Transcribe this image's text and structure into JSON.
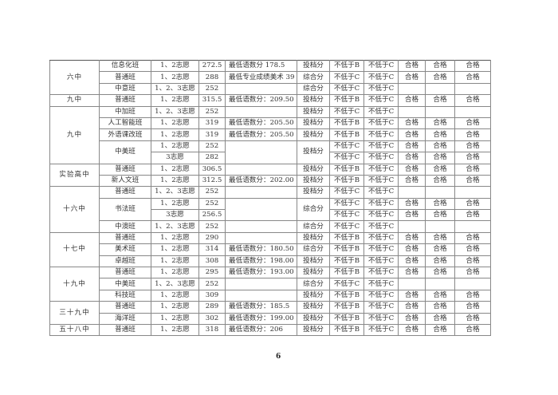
{
  "page_number": "6",
  "schools": [
    {
      "name": "六中",
      "classes": [
        {
          "name": "信息化班",
          "remark": "最低语数分 178.5",
          "type": "投档分",
          "options": [
            {
              "vol": "1、2志愿",
              "score": "272.5",
              "b": "不低于B",
              "c": "不低于C",
              "q": [
                "合格",
                "合格",
                "合格"
              ]
            }
          ]
        },
        {
          "name": "普通班",
          "remark": "最低专业成绩美术 39",
          "type": "综合分",
          "options": [
            {
              "vol": "1、2志愿",
              "score": "288",
              "b": "不低于C",
              "c": "不低于C",
              "q": [
                "合格",
                "合格",
                "合格"
              ]
            }
          ]
        },
        {
          "name": "中意班",
          "remark": "",
          "type": "综合分",
          "options": [
            {
              "vol": "1、2、3志愿",
              "score": "252",
              "b": "不低于C",
              "c": "不低于C",
              "q": [
                "",
                "",
                ""
              ]
            }
          ]
        }
      ]
    },
    {
      "name": "九中",
      "classes": [
        {
          "name": "普通班",
          "remark": "最低语数分：209.50",
          "type": "投档分",
          "options": [
            {
              "vol": "1、2志愿",
              "score": "315.5",
              "b": "不低于B",
              "c": "不低于C",
              "q": [
                "合格",
                "合格",
                "合格"
              ]
            }
          ]
        }
      ]
    },
    {
      "name": "九中",
      "classes": [
        {
          "name": "中加班",
          "remark": "",
          "type": "投档分",
          "options": [
            {
              "vol": "1、2、3志愿",
              "score": "252",
              "b": "不低于C",
              "c": "不低于C",
              "q": [
                "",
                "",
                ""
              ]
            }
          ]
        },
        {
          "name": "人工智能班",
          "remark": "最低语数分：205.50",
          "type": "投档分",
          "options": [
            {
              "vol": "1、2志愿",
              "score": "319",
              "b": "不低于B",
              "c": "不低于C",
              "q": [
                "合格",
                "合格",
                "合格"
              ]
            }
          ]
        },
        {
          "name": "外语课改班",
          "remark": "最低语数分：205.50",
          "type": "投档分",
          "options": [
            {
              "vol": "1、2志愿",
              "score": "319",
              "b": "不低于B",
              "c": "不低于C",
              "q": [
                "合格",
                "合格",
                "合格"
              ]
            }
          ]
        },
        {
          "name": "中美班",
          "remark": "",
          "type": "投档分",
          "options": [
            {
              "vol": "1、2志愿",
              "score": "252",
              "b": "不低于C",
              "c": "不低于C",
              "q": [
                "合格",
                "合格",
                "合格"
              ]
            },
            {
              "vol": "3志愿",
              "score": "282",
              "b": "不低于C",
              "c": "不低于C",
              "q": [
                "合格",
                "合格",
                "合格"
              ]
            }
          ]
        }
      ]
    },
    {
      "name": "实验高中",
      "classes": [
        {
          "name": "普通班",
          "remark": "",
          "type": "投档分",
          "options": [
            {
              "vol": "1、2志愿",
              "score": "306.5",
              "b": "不低于B",
              "c": "不低于C",
              "q": [
                "合格",
                "合格",
                "合格"
              ]
            }
          ]
        },
        {
          "name": "新人文班",
          "remark": "最低语数分：202.00",
          "type": "投档分",
          "options": [
            {
              "vol": "1、2志愿",
              "score": "312.5",
              "b": "不低于B",
              "c": "不低于C",
              "q": [
                "合格",
                "合格",
                "合格"
              ]
            }
          ]
        }
      ]
    },
    {
      "name": "十六中",
      "classes": [
        {
          "name": "普通班",
          "remark": "",
          "type": "投档分",
          "options": [
            {
              "vol": "1、2、3志愿",
              "score": "252",
              "b": "不低于C",
              "c": "不低于C",
              "q": [
                "",
                "",
                ""
              ]
            }
          ]
        },
        {
          "name": "书法班",
          "remark": "",
          "type": "综合分",
          "options": [
            {
              "vol": "1、2志愿",
              "score": "252",
              "b": "不低于C",
              "c": "不低于C",
              "q": [
                "合格",
                "合格",
                "合格"
              ]
            },
            {
              "vol": "3志愿",
              "score": "256.5",
              "b": "不低于C",
              "c": "不低于C",
              "q": [
                "合格",
                "合格",
                "合格"
              ]
            }
          ]
        },
        {
          "name": "中澳班",
          "remark": "",
          "type": "综合分",
          "options": [
            {
              "vol": "1、2、3志愿",
              "score": "252",
              "b": "不低于C",
              "c": "不低于C",
              "q": [
                "",
                "",
                ""
              ]
            }
          ]
        }
      ]
    },
    {
      "name": "十七中",
      "classes": [
        {
          "name": "普通班",
          "remark": "",
          "type": "投档分",
          "options": [
            {
              "vol": "1、2志愿",
              "score": "290",
              "b": "不低于B",
              "c": "不低于C",
              "q": [
                "合格",
                "合格",
                "合格"
              ]
            }
          ]
        },
        {
          "name": "美术班",
          "remark": "最低语数分：180.50",
          "type": "综合分",
          "options": [
            {
              "vol": "1、2志愿",
              "score": "314",
              "b": "不低于B",
              "c": "不低于C",
              "q": [
                "合格",
                "合格",
                "合格"
              ]
            }
          ]
        },
        {
          "name": "卓越班",
          "remark": "最低语数分：198.00",
          "type": "投档分",
          "options": [
            {
              "vol": "1、2志愿",
              "score": "308",
              "b": "不低于B",
              "c": "不低于C",
              "q": [
                "合格",
                "合格",
                "合格"
              ]
            }
          ]
        }
      ]
    },
    {
      "name": "十九中",
      "classes": [
        {
          "name": "普通班",
          "remark": "最低语数分：193.00",
          "type": "投档分",
          "options": [
            {
              "vol": "1、2志愿",
              "score": "295",
              "b": "不低于B",
              "c": "不低于C",
              "q": [
                "合格",
                "合格",
                "合格"
              ]
            }
          ]
        },
        {
          "name": "中美班",
          "remark": "",
          "type": "综合分",
          "options": [
            {
              "vol": "1、2、3志愿",
              "score": "252",
              "b": "不低于C",
              "c": "不低于C",
              "q": [
                "",
                "",
                ""
              ]
            }
          ]
        },
        {
          "name": "科技班",
          "remark": "",
          "type": "投档分",
          "options": [
            {
              "vol": "1、2志愿",
              "score": "309",
              "b": "不低于B",
              "c": "不低于C",
              "q": [
                "合格",
                "合格",
                "合格"
              ]
            }
          ]
        }
      ]
    },
    {
      "name": "三十九中",
      "classes": [
        {
          "name": "普通班",
          "remark": "最低语数分：185.5",
          "type": "投档分",
          "options": [
            {
              "vol": "1、2志愿",
              "score": "289",
              "b": "不低于B",
              "c": "不低于C",
              "q": [
                "合格",
                "合格",
                "合格"
              ]
            }
          ]
        },
        {
          "name": "海洋班",
          "remark": "最低语数分：199.00",
          "type": "投档分",
          "options": [
            {
              "vol": "1、2志愿",
              "score": "302",
              "b": "不低于B",
              "c": "不低于C",
              "q": [
                "合格",
                "合格",
                "合格"
              ]
            }
          ]
        }
      ]
    },
    {
      "name": "五十八中",
      "classes": [
        {
          "name": "普通班",
          "remark": "最低语数分：206",
          "type": "投档分",
          "options": [
            {
              "vol": "1、2志愿",
              "score": "318",
              "b": "不低于B",
              "c": "不低于C",
              "q": [
                "合格",
                "合格",
                "合格"
              ]
            }
          ]
        }
      ]
    }
  ]
}
